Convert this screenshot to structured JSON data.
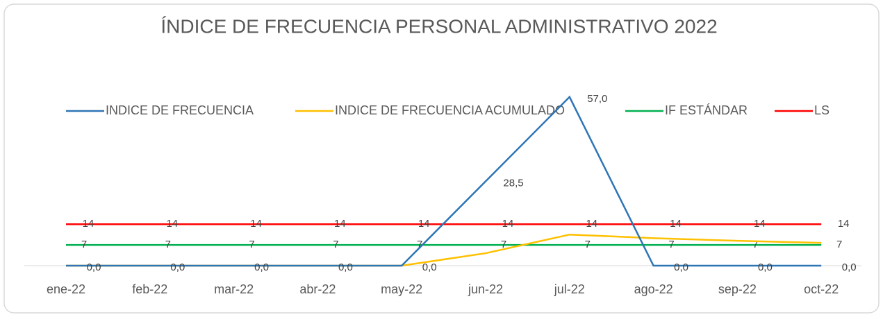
{
  "chart_data": {
    "type": "line",
    "title": "ÍNDICE DE FRECUENCIA PERSONAL ADMINISTRATIVO 2022",
    "categories": [
      "ene-22",
      "feb-22",
      "mar-22",
      "abr-22",
      "may-22",
      "jun-22",
      "jul-22",
      "ago-22",
      "sep-22",
      "oct-22"
    ],
    "series": [
      {
        "name": "INDICE DE FRECUENCIA",
        "color": "#2e75b6",
        "values": [
          0,
          0,
          0,
          0,
          0,
          28.5,
          57,
          0,
          0,
          0
        ],
        "value_labels": [
          "0,0",
          "0,0",
          "0,0",
          "0,0",
          "0,0",
          "28,5",
          "57,0",
          "0,0",
          "0,0",
          "0,0"
        ]
      },
      {
        "name": "INDICE DE FRECUENCIA ACUMULADO",
        "color": "#ffc000",
        "values": [
          0,
          0,
          0,
          0,
          0,
          4.2,
          10.5,
          9.3,
          8.4,
          7.7
        ]
      },
      {
        "name": "IF ESTÁNDAR",
        "color": "#00b050",
        "values": [
          7,
          7,
          7,
          7,
          7,
          7,
          7,
          7,
          7,
          7
        ],
        "show_labels": true
      },
      {
        "name": "LS",
        "color": "#ff0000",
        "values": [
          14,
          14,
          14,
          14,
          14,
          14,
          14,
          14,
          14,
          14
        ],
        "show_labels": true
      }
    ],
    "ylim": [
      0,
      60
    ],
    "legend": "top"
  }
}
